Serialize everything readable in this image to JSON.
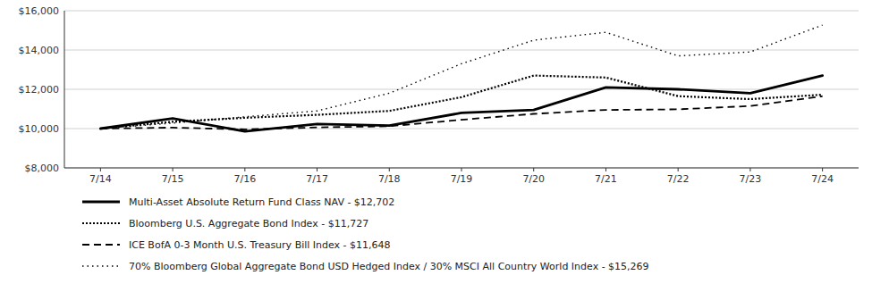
{
  "chart_data": {
    "type": "line",
    "categories": [
      "7/14",
      "7/15",
      "7/16",
      "7/17",
      "7/18",
      "7/19",
      "7/20",
      "7/21",
      "7/22",
      "7/23",
      "7/24"
    ],
    "series": [
      {
        "name": "Multi-Asset Absolute Return Fund Class NAV - $12,702",
        "line_style": "solid",
        "values": [
          10000,
          10520,
          9860,
          10230,
          10150,
          10800,
          10950,
          12100,
          12000,
          11800,
          12702
        ]
      },
      {
        "name": "Bloomberg U.S. Aggregate Bond Index - $11,727",
        "line_style": "dotted_dense",
        "values": [
          10000,
          10350,
          10550,
          10700,
          10900,
          11600,
          12700,
          12600,
          11650,
          11500,
          11727
        ]
      },
      {
        "name": "ICE BofA 0-3 Month U.S. Treasury Bill Index - $11,648",
        "line_style": "dashed",
        "values": [
          10000,
          10050,
          9960,
          10060,
          10120,
          10450,
          10750,
          10950,
          10980,
          11150,
          11648
        ]
      },
      {
        "name": "70% Bloomberg Global Aggregate Bond USD Hedged Index / 30% MSCI All Country World Index - $15,269",
        "line_style": "dotted_sparse",
        "values": [
          10000,
          10280,
          10600,
          10900,
          11800,
          13300,
          14500,
          14900,
          13700,
          13900,
          15269
        ]
      }
    ],
    "ylim": [
      8000,
      16000
    ],
    "yticks": [
      {
        "value": 8000,
        "label": "$8,000"
      },
      {
        "value": 10000,
        "label": "$10,000"
      },
      {
        "value": 12000,
        "label": "$12,000"
      },
      {
        "value": 14000,
        "label": "$14,000"
      },
      {
        "value": 16000,
        "label": "$16,000"
      }
    ],
    "grid": true,
    "legend": "bottom-left",
    "color": "#000000"
  }
}
